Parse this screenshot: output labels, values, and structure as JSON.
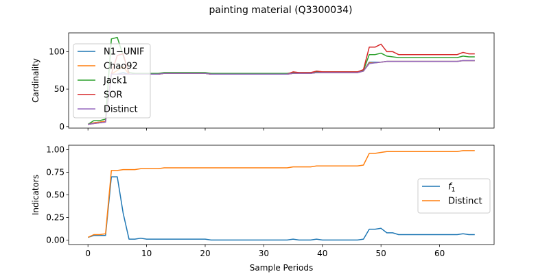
{
  "figure": {
    "suptitle": "painting material (Q3300034)"
  },
  "chart_data": [
    {
      "type": "line",
      "xlabel": "",
      "ylabel": "Cardinality",
      "xlim": [
        -3.3,
        69.3
      ],
      "ylim": [
        -2,
        125
      ],
      "xticks": [
        0,
        10,
        20,
        30,
        40,
        50,
        60
      ],
      "xtick_labels_visible": false,
      "yticks": [
        0,
        50,
        100
      ],
      "ytick_labels": [
        "0",
        "50",
        "100"
      ],
      "legend": {
        "position": "upper-left"
      },
      "x": [
        0,
        1,
        2,
        3,
        4,
        5,
        6,
        7,
        8,
        9,
        10,
        11,
        12,
        13,
        14,
        15,
        16,
        17,
        18,
        19,
        20,
        21,
        22,
        23,
        24,
        25,
        26,
        27,
        28,
        29,
        30,
        31,
        32,
        33,
        34,
        35,
        36,
        37,
        38,
        39,
        40,
        41,
        42,
        43,
        44,
        45,
        46,
        47,
        48,
        49,
        50,
        51,
        52,
        53,
        54,
        55,
        56,
        57,
        58,
        59,
        60,
        61,
        62,
        63,
        64,
        65,
        66
      ],
      "series": [
        {
          "name": "N1−UNIF",
          "color": "#1f77b4",
          "values": [
            3,
            5,
            6,
            7,
            70,
            70,
            72,
            70,
            70,
            70,
            70,
            70,
            70,
            71,
            71,
            71,
            71,
            71,
            71,
            71,
            71,
            70,
            70,
            70,
            70,
            70,
            70,
            70,
            70,
            70,
            70,
            70,
            70,
            70,
            70,
            71,
            71,
            71,
            71,
            72,
            72,
            72,
            72,
            72,
            72,
            72,
            72,
            74,
            86,
            86,
            86,
            87,
            87,
            87,
            87,
            87,
            87,
            87,
            87,
            87,
            87,
            87,
            87,
            87,
            88,
            88,
            88
          ]
        },
        {
          "name": "Chao92",
          "color": "#ff7f0e",
          "values": [
            3,
            5,
            6,
            7,
            70,
            75,
            80,
            70,
            70,
            70,
            70,
            70,
            70,
            71,
            71,
            71,
            71,
            71,
            71,
            71,
            71,
            70,
            70,
            70,
            70,
            70,
            70,
            70,
            70,
            70,
            70,
            70,
            70,
            70,
            70,
            71,
            71,
            71,
            71,
            72,
            72,
            72,
            72,
            72,
            72,
            72,
            72,
            74,
            85,
            85,
            86,
            87,
            87,
            87,
            87,
            87,
            87,
            87,
            87,
            87,
            87,
            87,
            87,
            87,
            88,
            88,
            88
          ]
        },
        {
          "name": "Jack1",
          "color": "#2ca02c",
          "values": [
            3,
            8,
            8,
            10,
            117,
            119,
            95,
            72,
            71,
            71,
            71,
            71,
            71,
            72,
            72,
            72,
            72,
            72,
            72,
            72,
            72,
            71,
            71,
            71,
            71,
            71,
            71,
            71,
            71,
            71,
            71,
            71,
            71,
            71,
            71,
            72,
            72,
            72,
            72,
            73,
            73,
            73,
            73,
            73,
            73,
            73,
            73,
            75,
            96,
            96,
            98,
            94,
            93,
            92,
            92,
            92,
            92,
            92,
            92,
            92,
            92,
            92,
            92,
            92,
            94,
            93,
            93
          ]
        },
        {
          "name": "SOR",
          "color": "#d62728",
          "values": [
            3,
            4,
            5,
            6,
            70,
            95,
            97,
            70,
            70,
            70,
            70,
            70,
            70,
            71,
            71,
            71,
            71,
            71,
            71,
            71,
            71,
            70,
            70,
            70,
            70,
            70,
            70,
            70,
            70,
            70,
            70,
            70,
            70,
            70,
            70,
            73,
            72,
            72,
            72,
            74,
            73,
            73,
            73,
            73,
            73,
            73,
            73,
            76,
            106,
            106,
            110,
            100,
            100,
            96,
            96,
            96,
            96,
            96,
            96,
            96,
            96,
            96,
            96,
            96,
            99,
            97,
            97
          ]
        },
        {
          "name": "Distinct",
          "color": "#9467bd",
          "values": [
            3,
            4,
            5,
            6,
            70,
            70,
            70,
            70,
            70,
            70,
            70,
            70,
            70,
            71,
            71,
            71,
            71,
            71,
            71,
            71,
            71,
            70,
            70,
            70,
            70,
            70,
            70,
            70,
            70,
            70,
            70,
            70,
            70,
            70,
            70,
            71,
            71,
            71,
            71,
            72,
            72,
            72,
            72,
            72,
            72,
            72,
            72,
            74,
            84,
            85,
            86,
            87,
            87,
            87,
            87,
            87,
            87,
            87,
            87,
            87,
            87,
            87,
            87,
            87,
            88,
            88,
            88
          ]
        }
      ]
    },
    {
      "type": "line",
      "xlabel": "Sample Periods",
      "ylabel": "Indicators",
      "xlim": [
        -3.3,
        69.3
      ],
      "ylim": [
        -0.05,
        1.05
      ],
      "xticks": [
        0,
        10,
        20,
        30,
        40,
        50,
        60
      ],
      "xtick_labels": [
        "0",
        "10",
        "20",
        "30",
        "40",
        "50",
        "60"
      ],
      "yticks": [
        0.0,
        0.25,
        0.5,
        0.75,
        1.0
      ],
      "ytick_labels": [
        "0.00",
        "0.25",
        "0.50",
        "0.75",
        "1.00"
      ],
      "legend": {
        "position": "center-right"
      },
      "x": [
        0,
        1,
        2,
        3,
        4,
        5,
        6,
        7,
        8,
        9,
        10,
        11,
        12,
        13,
        14,
        15,
        16,
        17,
        18,
        19,
        20,
        21,
        22,
        23,
        24,
        25,
        26,
        27,
        28,
        29,
        30,
        31,
        32,
        33,
        34,
        35,
        36,
        37,
        38,
        39,
        40,
        41,
        42,
        43,
        44,
        45,
        46,
        47,
        48,
        49,
        50,
        51,
        52,
        53,
        54,
        55,
        56,
        57,
        58,
        59,
        60,
        61,
        62,
        63,
        64,
        65,
        66
      ],
      "series": [
        {
          "name": "f",
          "name_subscript": "1",
          "color": "#1f77b4",
          "values": [
            0.03,
            0.05,
            0.05,
            0.05,
            0.7,
            0.7,
            0.3,
            0.01,
            0.01,
            0.02,
            0.01,
            0.01,
            0.01,
            0.01,
            0.01,
            0.01,
            0.01,
            0.01,
            0.01,
            0.01,
            0.01,
            0.0,
            0.0,
            0.0,
            0.0,
            0.0,
            0.0,
            0.0,
            0.0,
            0.0,
            0.0,
            0.0,
            0.0,
            0.0,
            0.0,
            0.01,
            0.0,
            0.0,
            0.0,
            0.01,
            0.0,
            0.0,
            0.0,
            0.0,
            0.0,
            0.0,
            0.0,
            0.01,
            0.12,
            0.12,
            0.13,
            0.08,
            0.08,
            0.06,
            0.06,
            0.06,
            0.06,
            0.06,
            0.06,
            0.06,
            0.06,
            0.06,
            0.06,
            0.06,
            0.07,
            0.06,
            0.06
          ]
        },
        {
          "name": "Distinct",
          "color": "#ff7f0e",
          "values": [
            0.03,
            0.06,
            0.06,
            0.07,
            0.77,
            0.77,
            0.78,
            0.78,
            0.78,
            0.79,
            0.79,
            0.79,
            0.79,
            0.8,
            0.8,
            0.8,
            0.8,
            0.8,
            0.8,
            0.8,
            0.8,
            0.8,
            0.8,
            0.8,
            0.8,
            0.8,
            0.8,
            0.8,
            0.8,
            0.8,
            0.8,
            0.8,
            0.8,
            0.8,
            0.8,
            0.81,
            0.81,
            0.81,
            0.81,
            0.82,
            0.82,
            0.82,
            0.82,
            0.82,
            0.82,
            0.82,
            0.82,
            0.83,
            0.96,
            0.96,
            0.97,
            0.98,
            0.98,
            0.98,
            0.98,
            0.98,
            0.98,
            0.98,
            0.98,
            0.98,
            0.98,
            0.98,
            0.98,
            0.98,
            0.99,
            0.99,
            0.99
          ]
        }
      ]
    }
  ]
}
